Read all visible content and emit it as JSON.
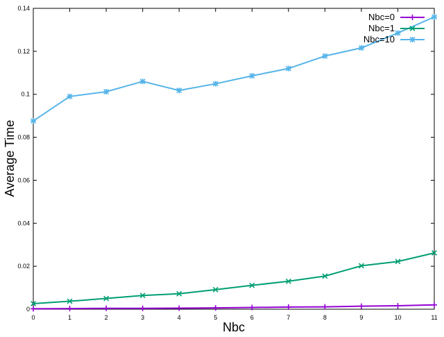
{
  "chart_data": {
    "type": "line",
    "title": "",
    "xlabel": "Nbc",
    "ylabel": "Average Time",
    "xlim": [
      0,
      11
    ],
    "ylim": [
      0,
      0.14
    ],
    "x_ticks": [
      "0",
      "1",
      "2",
      "3",
      "4",
      "5",
      "6",
      "7",
      "8",
      "9",
      "10",
      "11"
    ],
    "y_ticks": [
      "0",
      "0.02",
      "0.04",
      "0.06",
      "0.08",
      "0.1",
      "0.12",
      "0.14"
    ],
    "grid": false,
    "legend_position": "top-right",
    "x": [
      0,
      1,
      2,
      3,
      4,
      5,
      6,
      7,
      8,
      9,
      10,
      11
    ],
    "series": [
      {
        "name": "Nbc=0",
        "color": "#9400d3",
        "marker": "plus",
        "values": [
          0.0002,
          0.0003,
          0.0004,
          0.0004,
          0.0005,
          0.0006,
          0.0008,
          0.001,
          0.0011,
          0.0014,
          0.0016,
          0.002
        ]
      },
      {
        "name": "Nbc=1",
        "color": "#009e73",
        "marker": "x",
        "values": [
          0.0026,
          0.0037,
          0.005,
          0.0064,
          0.0072,
          0.0091,
          0.0111,
          0.013,
          0.0154,
          0.0202,
          0.0222,
          0.0262
        ]
      },
      {
        "name": "Nbc=10",
        "color": "#56b4e9",
        "marker": "star",
        "values": [
          0.0876,
          0.099,
          0.1012,
          0.106,
          0.1018,
          0.1049,
          0.1086,
          0.112,
          0.1178,
          0.1216,
          0.1285,
          0.136
        ]
      }
    ]
  }
}
